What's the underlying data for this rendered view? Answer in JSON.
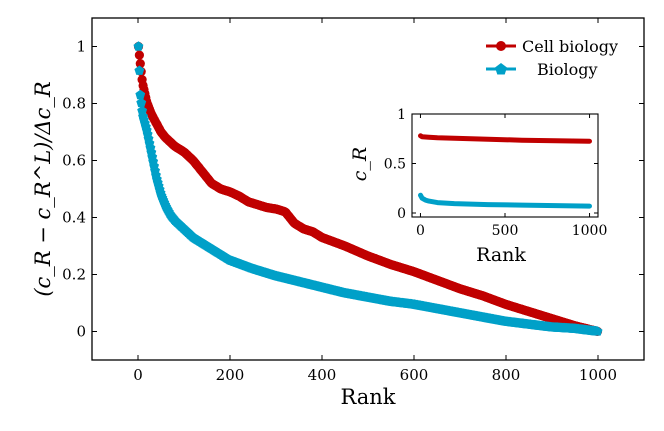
{
  "chart_data": [
    {
      "type": "line",
      "xlabel": "Rank",
      "ylabel": "(c_R − c_R^L)/Δc_R",
      "xlim": [
        -100,
        1100
      ],
      "ylim": [
        -0.1,
        1.1
      ],
      "xticks": [
        "0",
        "200",
        "400",
        "600",
        "800",
        "1000"
      ],
      "yticks": [
        "0",
        "0.2",
        "0.4",
        "0.6",
        "0.8",
        "1"
      ],
      "grid": false,
      "legend_position": "top-right",
      "series": [
        {
          "name": "Cell biology",
          "color": "#c00000",
          "marker": "circle",
          "x": [
            1,
            5,
            10,
            20,
            30,
            40,
            50,
            60,
            70,
            80,
            100,
            120,
            140,
            160,
            180,
            200,
            220,
            240,
            260,
            280,
            300,
            320,
            340,
            360,
            380,
            400,
            450,
            500,
            550,
            600,
            650,
            700,
            750,
            800,
            850,
            900,
            950,
            1000
          ],
          "y": [
            1.0,
            0.94,
            0.87,
            0.8,
            0.76,
            0.73,
            0.7,
            0.68,
            0.665,
            0.65,
            0.63,
            0.6,
            0.56,
            0.52,
            0.5,
            0.49,
            0.475,
            0.455,
            0.445,
            0.435,
            0.43,
            0.42,
            0.38,
            0.36,
            0.35,
            0.33,
            0.3,
            0.265,
            0.235,
            0.21,
            0.18,
            0.15,
            0.125,
            0.095,
            0.07,
            0.045,
            0.02,
            0.0
          ]
        },
        {
          "name": "Biology",
          "color": "#00a0c8",
          "marker": "pentagon",
          "x": [
            1,
            5,
            10,
            15,
            20,
            25,
            30,
            40,
            50,
            60,
            70,
            80,
            100,
            120,
            140,
            160,
            180,
            200,
            250,
            300,
            350,
            400,
            450,
            500,
            550,
            600,
            650,
            700,
            750,
            800,
            850,
            900,
            950,
            1000
          ],
          "y": [
            1.0,
            0.83,
            0.76,
            0.73,
            0.7,
            0.66,
            0.62,
            0.54,
            0.48,
            0.44,
            0.41,
            0.39,
            0.36,
            0.33,
            0.31,
            0.29,
            0.27,
            0.25,
            0.22,
            0.195,
            0.175,
            0.155,
            0.135,
            0.12,
            0.105,
            0.095,
            0.08,
            0.065,
            0.05,
            0.035,
            0.025,
            0.015,
            0.01,
            0.0
          ]
        }
      ]
    },
    {
      "type": "line",
      "xlabel": "Rank",
      "ylabel": "c_R",
      "xlim": [
        -50,
        1050
      ],
      "ylim": [
        0,
        1
      ],
      "xticks": [
        "0",
        "500",
        "1000"
      ],
      "yticks": [
        "0",
        "0.5",
        "1"
      ],
      "series": [
        {
          "name": "Cell biology",
          "color": "#c00000",
          "x": [
            0,
            10,
            50,
            100,
            200,
            400,
            600,
            800,
            1000
          ],
          "y": [
            0.78,
            0.77,
            0.765,
            0.76,
            0.755,
            0.745,
            0.735,
            0.73,
            0.725
          ]
        },
        {
          "name": "Biology",
          "color": "#00a0c8",
          "x": [
            0,
            10,
            30,
            50,
            100,
            200,
            400,
            600,
            800,
            1000
          ],
          "y": [
            0.18,
            0.15,
            0.13,
            0.12,
            0.105,
            0.095,
            0.085,
            0.08,
            0.075,
            0.07
          ]
        }
      ]
    }
  ]
}
